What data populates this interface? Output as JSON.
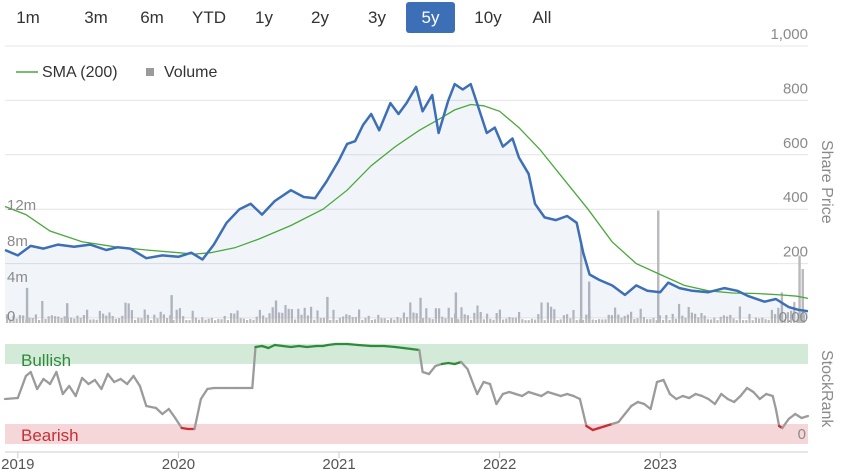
{
  "range_selector": {
    "buttons": [
      "1m",
      "3m",
      "6m",
      "YTD",
      "1y",
      "2y",
      "3y",
      "5y",
      "10y",
      "All"
    ],
    "active": "5y"
  },
  "legend": {
    "sma_label": "SMA (200)",
    "volume_label": "Volume"
  },
  "colors": {
    "price": "#3d6fb6",
    "sma": "#4aa83c",
    "volume": "#b9b9be",
    "bullish_band": "#d3ead9",
    "bearish_band": "#f6d7d9",
    "bullish_line": "#2e8b3a",
    "bearish_line": "#c62f36",
    "neutral_line": "#9b9b9b",
    "active_button": "#3d6fb6"
  },
  "chart_data": [
    {
      "type": "line",
      "title": "",
      "xlabel": "",
      "ylabel": "Share Price",
      "ylim": [
        0,
        1000
      ],
      "yticks": [
        {
          "value": 0,
          "label": "0.00"
        },
        {
          "value": 200,
          "label": "200"
        },
        {
          "value": 400,
          "label": "400"
        },
        {
          "value": 600,
          "label": "600"
        },
        {
          "value": 800,
          "label": "800"
        },
        {
          "value": 1000,
          "label": "1,000"
        }
      ],
      "xlim": [
        2018.92,
        2023.92
      ],
      "xticks": [
        {
          "value": 2019,
          "label": "2019"
        },
        {
          "value": 2020,
          "label": "2020"
        },
        {
          "value": 2021,
          "label": "2021"
        },
        {
          "value": 2022,
          "label": "2022"
        },
        {
          "value": 2023,
          "label": "2023"
        }
      ],
      "series": [
        {
          "name": "Price",
          "points": [
            [
              2018.92,
              250
            ],
            [
              2019.0,
              230
            ],
            [
              2019.08,
              265
            ],
            [
              2019.16,
              255
            ],
            [
              2019.25,
              270
            ],
            [
              2019.35,
              262
            ],
            [
              2019.45,
              270
            ],
            [
              2019.55,
              250
            ],
            [
              2019.62,
              260
            ],
            [
              2019.7,
              255
            ],
            [
              2019.8,
              220
            ],
            [
              2019.9,
              230
            ],
            [
              2020.0,
              225
            ],
            [
              2020.08,
              240
            ],
            [
              2020.15,
              215
            ],
            [
              2020.22,
              270
            ],
            [
              2020.3,
              350
            ],
            [
              2020.38,
              400
            ],
            [
              2020.45,
              420
            ],
            [
              2020.52,
              380
            ],
            [
              2020.6,
              430
            ],
            [
              2020.7,
              470
            ],
            [
              2020.78,
              445
            ],
            [
              2020.85,
              440
            ],
            [
              2020.92,
              500
            ],
            [
              2021.0,
              580
            ],
            [
              2021.05,
              640
            ],
            [
              2021.1,
              650
            ],
            [
              2021.15,
              710
            ],
            [
              2021.2,
              750
            ],
            [
              2021.25,
              690
            ],
            [
              2021.32,
              790
            ],
            [
              2021.37,
              750
            ],
            [
              2021.42,
              790
            ],
            [
              2021.48,
              850
            ],
            [
              2021.52,
              760
            ],
            [
              2021.58,
              820
            ],
            [
              2021.62,
              680
            ],
            [
              2021.68,
              800
            ],
            [
              2021.72,
              860
            ],
            [
              2021.77,
              840
            ],
            [
              2021.82,
              860
            ],
            [
              2021.87,
              770
            ],
            [
              2021.92,
              680
            ],
            [
              2021.97,
              700
            ],
            [
              2022.02,
              630
            ],
            [
              2022.08,
              660
            ],
            [
              2022.12,
              590
            ],
            [
              2022.18,
              530
            ],
            [
              2022.22,
              420
            ],
            [
              2022.28,
              370
            ],
            [
              2022.35,
              360
            ],
            [
              2022.42,
              375
            ],
            [
              2022.48,
              350
            ],
            [
              2022.52,
              240
            ],
            [
              2022.56,
              160
            ],
            [
              2022.62,
              140
            ],
            [
              2022.7,
              120
            ],
            [
              2022.78,
              85
            ],
            [
              2022.85,
              120
            ],
            [
              2022.92,
              100
            ],
            [
              2023.0,
              95
            ],
            [
              2023.05,
              130
            ],
            [
              2023.12,
              110
            ],
            [
              2023.2,
              100
            ],
            [
              2023.3,
              95
            ],
            [
              2023.4,
              110
            ],
            [
              2023.48,
              100
            ],
            [
              2023.55,
              80
            ],
            [
              2023.65,
              60
            ],
            [
              2023.72,
              70
            ],
            [
              2023.8,
              40
            ],
            [
              2023.86,
              30
            ],
            [
              2023.92,
              25
            ]
          ]
        },
        {
          "name": "SMA (200)",
          "points": [
            [
              2018.92,
              410
            ],
            [
              2019.05,
              380
            ],
            [
              2019.2,
              320
            ],
            [
              2019.4,
              280
            ],
            [
              2019.6,
              262
            ],
            [
              2019.8,
              250
            ],
            [
              2020.0,
              240
            ],
            [
              2020.1,
              235
            ],
            [
              2020.2,
              240
            ],
            [
              2020.35,
              258
            ],
            [
              2020.5,
              290
            ],
            [
              2020.7,
              340
            ],
            [
              2020.9,
              400
            ],
            [
              2021.05,
              470
            ],
            [
              2021.2,
              560
            ],
            [
              2021.35,
              630
            ],
            [
              2021.5,
              690
            ],
            [
              2021.62,
              730
            ],
            [
              2021.72,
              765
            ],
            [
              2021.82,
              785
            ],
            [
              2021.9,
              780
            ],
            [
              2022.0,
              760
            ],
            [
              2022.12,
              700
            ],
            [
              2022.25,
              620
            ],
            [
              2022.4,
              510
            ],
            [
              2022.55,
              400
            ],
            [
              2022.7,
              280
            ],
            [
              2022.85,
              200
            ],
            [
              2023.0,
              160
            ],
            [
              2023.15,
              120
            ],
            [
              2023.3,
              100
            ],
            [
              2023.45,
              92
            ],
            [
              2023.6,
              90
            ],
            [
              2023.75,
              85
            ],
            [
              2023.85,
              80
            ],
            [
              2023.92,
              72
            ]
          ]
        }
      ]
    },
    {
      "type": "bar",
      "title": "",
      "ylabel": "Volume",
      "ylim": [
        0,
        14000000
      ],
      "yticks": [
        {
          "value": 0,
          "label": "0"
        },
        {
          "value": 4000000,
          "label": "4m"
        },
        {
          "value": 8000000,
          "label": "8m"
        },
        {
          "value": 12000000,
          "label": "12m"
        }
      ],
      "baseline_volume": 900000,
      "spikes": [
        {
          "x": 2019.05,
          "value": 3900000
        },
        {
          "x": 2019.3,
          "value": 2200000
        },
        {
          "x": 2019.95,
          "value": 3100000
        },
        {
          "x": 2020.6,
          "value": 2500000
        },
        {
          "x": 2020.92,
          "value": 2900000
        },
        {
          "x": 2021.5,
          "value": 2800000
        },
        {
          "x": 2021.72,
          "value": 3400000
        },
        {
          "x": 2022.5,
          "value": 9000000
        },
        {
          "x": 2022.55,
          "value": 4600000
        },
        {
          "x": 2022.98,
          "value": 12500000
        },
        {
          "x": 2023.75,
          "value": 3400000
        },
        {
          "x": 2023.86,
          "value": 7500000
        },
        {
          "x": 2023.88,
          "value": 6000000
        }
      ]
    },
    {
      "type": "line",
      "title": "",
      "ylabel": "StockRank",
      "ylim": [
        0,
        100
      ],
      "yticks": [
        {
          "value": 0,
          "label": "0"
        }
      ],
      "bands": [
        {
          "label": "Bullish",
          "from": 80,
          "to": 100
        },
        {
          "label": "Bearish",
          "from": 0,
          "to": 20
        }
      ],
      "series": [
        {
          "name": "StockRank",
          "points": [
            [
              2018.92,
              45
            ],
            [
              2019.0,
              46
            ],
            [
              2019.05,
              68
            ],
            [
              2019.08,
              72
            ],
            [
              2019.12,
              55
            ],
            [
              2019.16,
              65
            ],
            [
              2019.2,
              60
            ],
            [
              2019.24,
              72
            ],
            [
              2019.28,
              50
            ],
            [
              2019.32,
              58
            ],
            [
              2019.36,
              48
            ],
            [
              2019.4,
              66
            ],
            [
              2019.44,
              60
            ],
            [
              2019.48,
              64
            ],
            [
              2019.52,
              55
            ],
            [
              2019.56,
              70
            ],
            [
              2019.6,
              62
            ],
            [
              2019.64,
              65
            ],
            [
              2019.68,
              60
            ],
            [
              2019.72,
              68
            ],
            [
              2019.76,
              58
            ],
            [
              2019.8,
              38
            ],
            [
              2019.86,
              36
            ],
            [
              2019.9,
              30
            ],
            [
              2019.94,
              35
            ],
            [
              2019.98,
              26
            ],
            [
              2020.02,
              16
            ],
            [
              2020.06,
              15
            ],
            [
              2020.1,
              15
            ],
            [
              2020.14,
              45
            ],
            [
              2020.18,
              55
            ],
            [
              2020.22,
              56
            ],
            [
              2020.26,
              56
            ],
            [
              2020.3,
              56
            ],
            [
              2020.36,
              56
            ],
            [
              2020.4,
              56
            ],
            [
              2020.44,
              56
            ],
            [
              2020.46,
              56
            ],
            [
              2020.48,
              97
            ],
            [
              2020.52,
              98
            ],
            [
              2020.56,
              96
            ],
            [
              2020.6,
              99
            ],
            [
              2020.65,
              98
            ],
            [
              2020.7,
              97
            ],
            [
              2020.75,
              98
            ],
            [
              2020.8,
              97
            ],
            [
              2020.86,
              98
            ],
            [
              2020.9,
              98
            ],
            [
              2020.93,
              99
            ],
            [
              2020.98,
              100
            ],
            [
              2021.05,
              100
            ],
            [
              2021.12,
              99
            ],
            [
              2021.2,
              98
            ],
            [
              2021.28,
              98
            ],
            [
              2021.35,
              97
            ],
            [
              2021.4,
              96
            ],
            [
              2021.45,
              95
            ],
            [
              2021.5,
              94
            ],
            [
              2021.52,
              72
            ],
            [
              2021.56,
              70
            ],
            [
              2021.6,
              78
            ],
            [
              2021.64,
              80
            ],
            [
              2021.68,
              81
            ],
            [
              2021.72,
              80
            ],
            [
              2021.76,
              82
            ],
            [
              2021.8,
              75
            ],
            [
              2021.84,
              58
            ],
            [
              2021.86,
              50
            ],
            [
              2021.9,
              62
            ],
            [
              2021.94,
              60
            ],
            [
              2021.98,
              40
            ],
            [
              2022.02,
              50
            ],
            [
              2022.06,
              52
            ],
            [
              2022.1,
              50
            ],
            [
              2022.14,
              48
            ],
            [
              2022.18,
              52
            ],
            [
              2022.22,
              50
            ],
            [
              2022.26,
              48
            ],
            [
              2022.3,
              52
            ],
            [
              2022.34,
              50
            ],
            [
              2022.38,
              48
            ],
            [
              2022.42,
              50
            ],
            [
              2022.46,
              48
            ],
            [
              2022.5,
              45
            ],
            [
              2022.54,
              18
            ],
            [
              2022.58,
              14
            ],
            [
              2022.62,
              16
            ],
            [
              2022.66,
              18
            ],
            [
              2022.7,
              20
            ],
            [
              2022.74,
              22
            ],
            [
              2022.78,
              30
            ],
            [
              2022.82,
              38
            ],
            [
              2022.86,
              42
            ],
            [
              2022.9,
              40
            ],
            [
              2022.94,
              35
            ],
            [
              2022.98,
              62
            ],
            [
              2023.02,
              64
            ],
            [
              2023.06,
              50
            ],
            [
              2023.1,
              45
            ],
            [
              2023.14,
              48
            ],
            [
              2023.18,
              46
            ],
            [
              2023.22,
              50
            ],
            [
              2023.26,
              48
            ],
            [
              2023.3,
              45
            ],
            [
              2023.34,
              40
            ],
            [
              2023.38,
              50
            ],
            [
              2023.42,
              45
            ],
            [
              2023.46,
              42
            ],
            [
              2023.5,
              48
            ],
            [
              2023.54,
              56
            ],
            [
              2023.58,
              52
            ],
            [
              2023.62,
              45
            ],
            [
              2023.66,
              50
            ],
            [
              2023.7,
              48
            ],
            [
              2023.72,
              35
            ],
            [
              2023.74,
              18
            ],
            [
              2023.76,
              16
            ],
            [
              2023.8,
              25
            ],
            [
              2023.84,
              30
            ],
            [
              2023.88,
              26
            ],
            [
              2023.92,
              28
            ]
          ]
        }
      ]
    }
  ]
}
